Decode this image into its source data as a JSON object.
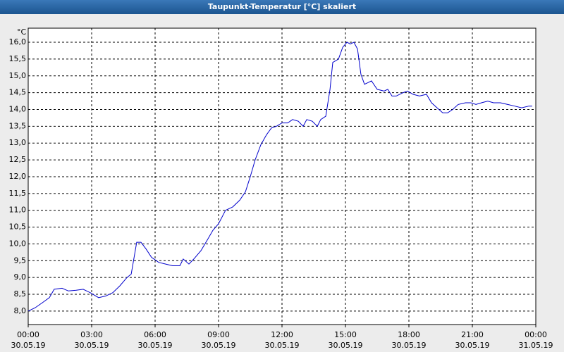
{
  "chart_data": {
    "type": "line",
    "title": "Taupunkt-Temperatur [°C] skaliert",
    "y_unit": "°C",
    "color": "#0000cc",
    "grid": true,
    "x": [
      0,
      0.33,
      0.67,
      1.0,
      1.23,
      1.6,
      1.9,
      2.27,
      2.6,
      2.93,
      3.33,
      3.67,
      4.0,
      4.33,
      4.67,
      4.87,
      5.13,
      5.33,
      5.57,
      5.83,
      6.17,
      6.5,
      6.83,
      7.17,
      7.33,
      7.6,
      7.83,
      8.17,
      8.5,
      8.73,
      9.0,
      9.33,
      9.67,
      10.0,
      10.27,
      10.5,
      10.73,
      11.0,
      11.27,
      11.5,
      11.73,
      12.0,
      12.27,
      12.5,
      12.77,
      13.0,
      13.17,
      13.43,
      13.67,
      13.83,
      14.07,
      14.27,
      14.4,
      14.67,
      14.87,
      15.07,
      15.23,
      15.4,
      15.57,
      15.73,
      15.9,
      16.07,
      16.23,
      16.5,
      16.83,
      17.0,
      17.2,
      17.4,
      17.73,
      17.93,
      18.2,
      18.5,
      18.83,
      19.07,
      19.33,
      19.6,
      19.83,
      20.07,
      20.33,
      20.67,
      20.93,
      21.17,
      21.43,
      21.73,
      22.0,
      22.33,
      22.67,
      23.0,
      23.33,
      23.67,
      23.83
    ],
    "values": [
      8.0,
      8.1,
      8.25,
      8.4,
      8.65,
      8.68,
      8.6,
      8.62,
      8.65,
      8.55,
      8.4,
      8.45,
      8.55,
      8.75,
      9.0,
      9.1,
      10.05,
      10.05,
      9.85,
      9.6,
      9.45,
      9.4,
      9.35,
      9.35,
      9.55,
      9.4,
      9.55,
      9.8,
      10.15,
      10.4,
      10.6,
      11.0,
      11.1,
      11.3,
      11.55,
      12.0,
      12.5,
      12.95,
      13.25,
      13.45,
      13.5,
      13.6,
      13.6,
      13.7,
      13.65,
      13.5,
      13.7,
      13.65,
      13.5,
      13.7,
      13.8,
      14.6,
      15.4,
      15.5,
      15.85,
      16.0,
      15.95,
      16.0,
      15.8,
      15.05,
      14.75,
      14.8,
      14.85,
      14.6,
      14.55,
      14.6,
      14.4,
      14.4,
      14.5,
      14.55,
      14.45,
      14.4,
      14.45,
      14.2,
      14.05,
      13.9,
      13.9,
      14.0,
      14.15,
      14.2,
      14.2,
      14.15,
      14.2,
      14.25,
      14.2,
      14.2,
      14.15,
      14.1,
      14.05,
      14.1,
      14.1
    ],
    "xlim": [
      0,
      24
    ],
    "xticks": [
      {
        "value": 0,
        "label": "00:00"
      },
      {
        "value": 3,
        "label": "03:00"
      },
      {
        "value": 6,
        "label": "06:00"
      },
      {
        "value": 9,
        "label": "09:00"
      },
      {
        "value": 12,
        "label": "12:00"
      },
      {
        "value": 15,
        "label": "15:00"
      },
      {
        "value": 18,
        "label": "18:00"
      },
      {
        "value": 21,
        "label": "21:00"
      },
      {
        "value": 24,
        "label": "00:00"
      }
    ],
    "xtick_dates": [
      "30.05.19",
      "30.05.19",
      "30.05.19",
      "30.05.19",
      "30.05.19",
      "30.05.19",
      "30.05.19",
      "30.05.19",
      "31.05.19"
    ],
    "ylim": [
      7.6,
      16.42
    ],
    "yticks": [
      {
        "value": 8,
        "label": "8,0"
      },
      {
        "value": 8.5,
        "label": "8,5"
      },
      {
        "value": 9,
        "label": "9,0"
      },
      {
        "value": 9.5,
        "label": "9,5"
      },
      {
        "value": 10,
        "label": "10,0"
      },
      {
        "value": 10.5,
        "label": "10,5"
      },
      {
        "value": 11,
        "label": "11,0"
      },
      {
        "value": 11.5,
        "label": "11,5"
      },
      {
        "value": 12,
        "label": "12,0"
      },
      {
        "value": 12.5,
        "label": "12,5"
      },
      {
        "value": 13,
        "label": "13,0"
      },
      {
        "value": 13.5,
        "label": "13,5"
      },
      {
        "value": 14,
        "label": "14,0"
      },
      {
        "value": 14.5,
        "label": "14,5"
      },
      {
        "value": 15,
        "label": "15,0"
      },
      {
        "value": 15.5,
        "label": "15,5"
      },
      {
        "value": 16,
        "label": "16,0"
      }
    ]
  }
}
